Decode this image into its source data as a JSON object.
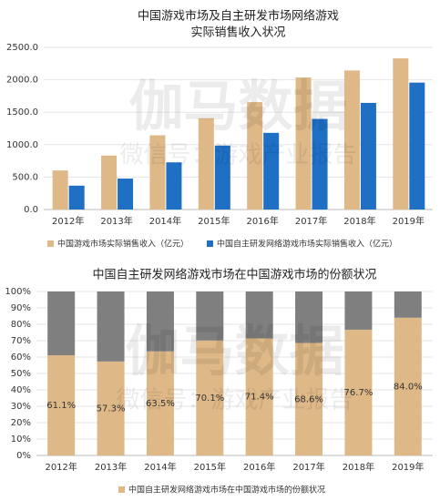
{
  "chart_data": [
    {
      "type": "bar",
      "title": [
        "中国游戏市场及自主研发市场网络游戏",
        "实际销售收入状况"
      ],
      "watermark": [
        "伽马数据",
        "微信号：游戏产业报告"
      ],
      "categories": [
        "2012年",
        "2013年",
        "2014年",
        "2015年",
        "2016年",
        "2017年",
        "2018年",
        "2019年"
      ],
      "series": [
        {
          "name": "中国游戏市场实际销售收入（亿元）",
          "color": "#deb887",
          "values": [
            602,
            832,
            1144,
            1407,
            1656,
            2036,
            2144,
            2330
          ]
        },
        {
          "name": "中国自主研发网络游戏市场实际销售收入（亿元）",
          "color": "#1f6fc5",
          "values": [
            368,
            477,
            727,
            986,
            1182,
            1397,
            1644,
            1957
          ]
        }
      ],
      "ylim": [
        0,
        2500
      ],
      "yticks": [
        {
          "value": 0,
          "label": "0.0"
        },
        {
          "value": 500,
          "label": "500.0"
        },
        {
          "value": 1000,
          "label": "1000.0"
        },
        {
          "value": 1500,
          "label": "1500.0"
        },
        {
          "value": 2000,
          "label": "2000.0"
        },
        {
          "value": 2500,
          "label": "2500.0"
        }
      ],
      "grid": true
    },
    {
      "type": "stacked_bar",
      "title": [
        "中国自主研发网络游戏市场在中国游戏市场的份额状况"
      ],
      "watermark": [
        "伽马数据",
        "微信号：游戏产业报告"
      ],
      "categories": [
        "2012年",
        "2013年",
        "2014年",
        "2015年",
        "2016年",
        "2017年",
        "2018年",
        "2019年"
      ],
      "series": [
        {
          "name": "中国自主研发网络游戏市场在中国游戏市场的份额状况",
          "color": "#deb887",
          "values": [
            61.1,
            57.3,
            63.5,
            70.1,
            71.4,
            68.6,
            76.7,
            84.0
          ],
          "value_labels": [
            "61.1%",
            "57.3%",
            "63.5%",
            "70.1%",
            "71.4%",
            "68.6%",
            "76.7%",
            "84.0%"
          ]
        },
        {
          "color": "#7f7f7f",
          "values": [
            38.9,
            42.7,
            36.5,
            29.9,
            28.6,
            31.4,
            23.3,
            16.0
          ]
        }
      ],
      "ylim": [
        0,
        100
      ],
      "yticks": [
        {
          "value": 0,
          "label": "0%"
        },
        {
          "value": 10,
          "label": "10%"
        },
        {
          "value": 20,
          "label": "20%"
        },
        {
          "value": 30,
          "label": "30%"
        },
        {
          "value": 40,
          "label": "40%"
        },
        {
          "value": 50,
          "label": "50%"
        },
        {
          "value": 60,
          "label": "60%"
        },
        {
          "value": 70,
          "label": "70%"
        },
        {
          "value": 80,
          "label": "80%"
        },
        {
          "value": 90,
          "label": "90%"
        },
        {
          "value": 100,
          "label": "100%"
        }
      ],
      "grid": true
    }
  ]
}
